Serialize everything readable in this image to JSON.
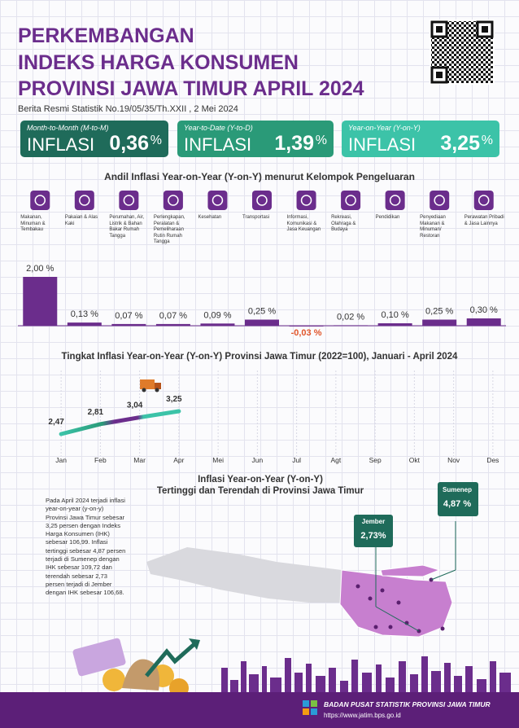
{
  "header": {
    "title": [
      "PERKEMBANGAN",
      "INDEKS HARGA KONSUMEN",
      "PROVINSI JAWA TIMUR APRIL 2024"
    ],
    "subtitle": "Berita Resmi Statistik No.19/05/35/Th.XXII , 2 Mei 2024"
  },
  "cards": [
    {
      "label": "Month-to-Month (M-to-M)",
      "word": "INFLASI",
      "value": "0,36",
      "unit": "%"
    },
    {
      "label": "Year-to-Date (Y-to-D)",
      "word": "INFLASI",
      "value": "1,39",
      "unit": "%"
    },
    {
      "label": "Year-on-Year (Y-on-Y)",
      "word": "INFLASI",
      "value": "3,25",
      "unit": "%"
    }
  ],
  "chart_data": [
    {
      "type": "bar",
      "title": "Andil Inflasi Year-on-Year (Y-on-Y) menurut Kelompok Pengeluaran",
      "categories": [
        "Makanan, Minuman & Tembakau",
        "Pakaian & Alas Kaki",
        "Perumahan, Air, Listrik & Bahan Bakar Rumah Tangga",
        "Perlengkapan, Peralatan & Pemeliharaan Rutin Rumah Tangga",
        "Kesehatan",
        "Transportasi",
        "Informasi, Komunikasi & Jasa Keuangan",
        "Rekreasi, Olahraga & Budaya",
        "Pendidikan",
        "Penyediaan Makanan & Minuman/ Restoran",
        "Perawatan Pribadi & Jasa Lainnya"
      ],
      "values": [
        2.0,
        0.13,
        0.07,
        0.07,
        0.09,
        0.25,
        -0.03,
        0.02,
        0.1,
        0.25,
        0.3
      ],
      "value_labels": [
        "2,00 %",
        "0,13 %",
        "0,07 %",
        "0,07 %",
        "0,09 %",
        "0,25 %",
        "-0,03 %",
        "0,02 %",
        "0,10 %",
        "0,25 %",
        "0,30 %"
      ],
      "color": "#6b2d8c"
    },
    {
      "type": "line",
      "title": "Tingkat Inflasi Year-on-Year (Y-on-Y) Provinsi Jawa Timur (2022=100), Januari - April  2024",
      "categories": [
        "Jan",
        "Feb",
        "Mar",
        "Apr",
        "Mei",
        "Jun",
        "Jul",
        "Agt",
        "Sep",
        "Okt",
        "Nov",
        "Des"
      ],
      "values": [
        2.47,
        2.81,
        3.04,
        3.25,
        null,
        null,
        null,
        null,
        null,
        null,
        null,
        null
      ],
      "value_labels": [
        "2,47",
        "2,81",
        "3,04",
        "3,25",
        null,
        null,
        null,
        null,
        null,
        null,
        null,
        null
      ],
      "color": "#3cc3a8"
    }
  ],
  "map": {
    "title": [
      "Inflasi Year-on-Year (Y-on-Y)",
      "Tertinggi dan Terendah di Provinsi Jawa Timur"
    ],
    "text": "Pada April 2024 terjadi inflasi year-on-year (y-on-y) Provinsi Jawa Timur sebesar 3,25 persen dengan Indeks Harga Konsumen (IHK) sebesar 106,99. Inflasi tertinggi sebesar 4,87 persen terjadi di Sumenep dengan IHK sebesar 109,72 dan terendah sebesar 2,73 persen terjadi di Jember dengan IHK sebesar 106,68.",
    "callouts": [
      {
        "name": "Sumenep",
        "value": "4,87 %"
      },
      {
        "name": "Jember",
        "value": "2,73%"
      }
    ]
  },
  "footer": {
    "org": "BADAN PUSAT STATISTIK PROVINSI JAWA TIMUR",
    "url": "https://www.jatim.bps.go.id"
  }
}
